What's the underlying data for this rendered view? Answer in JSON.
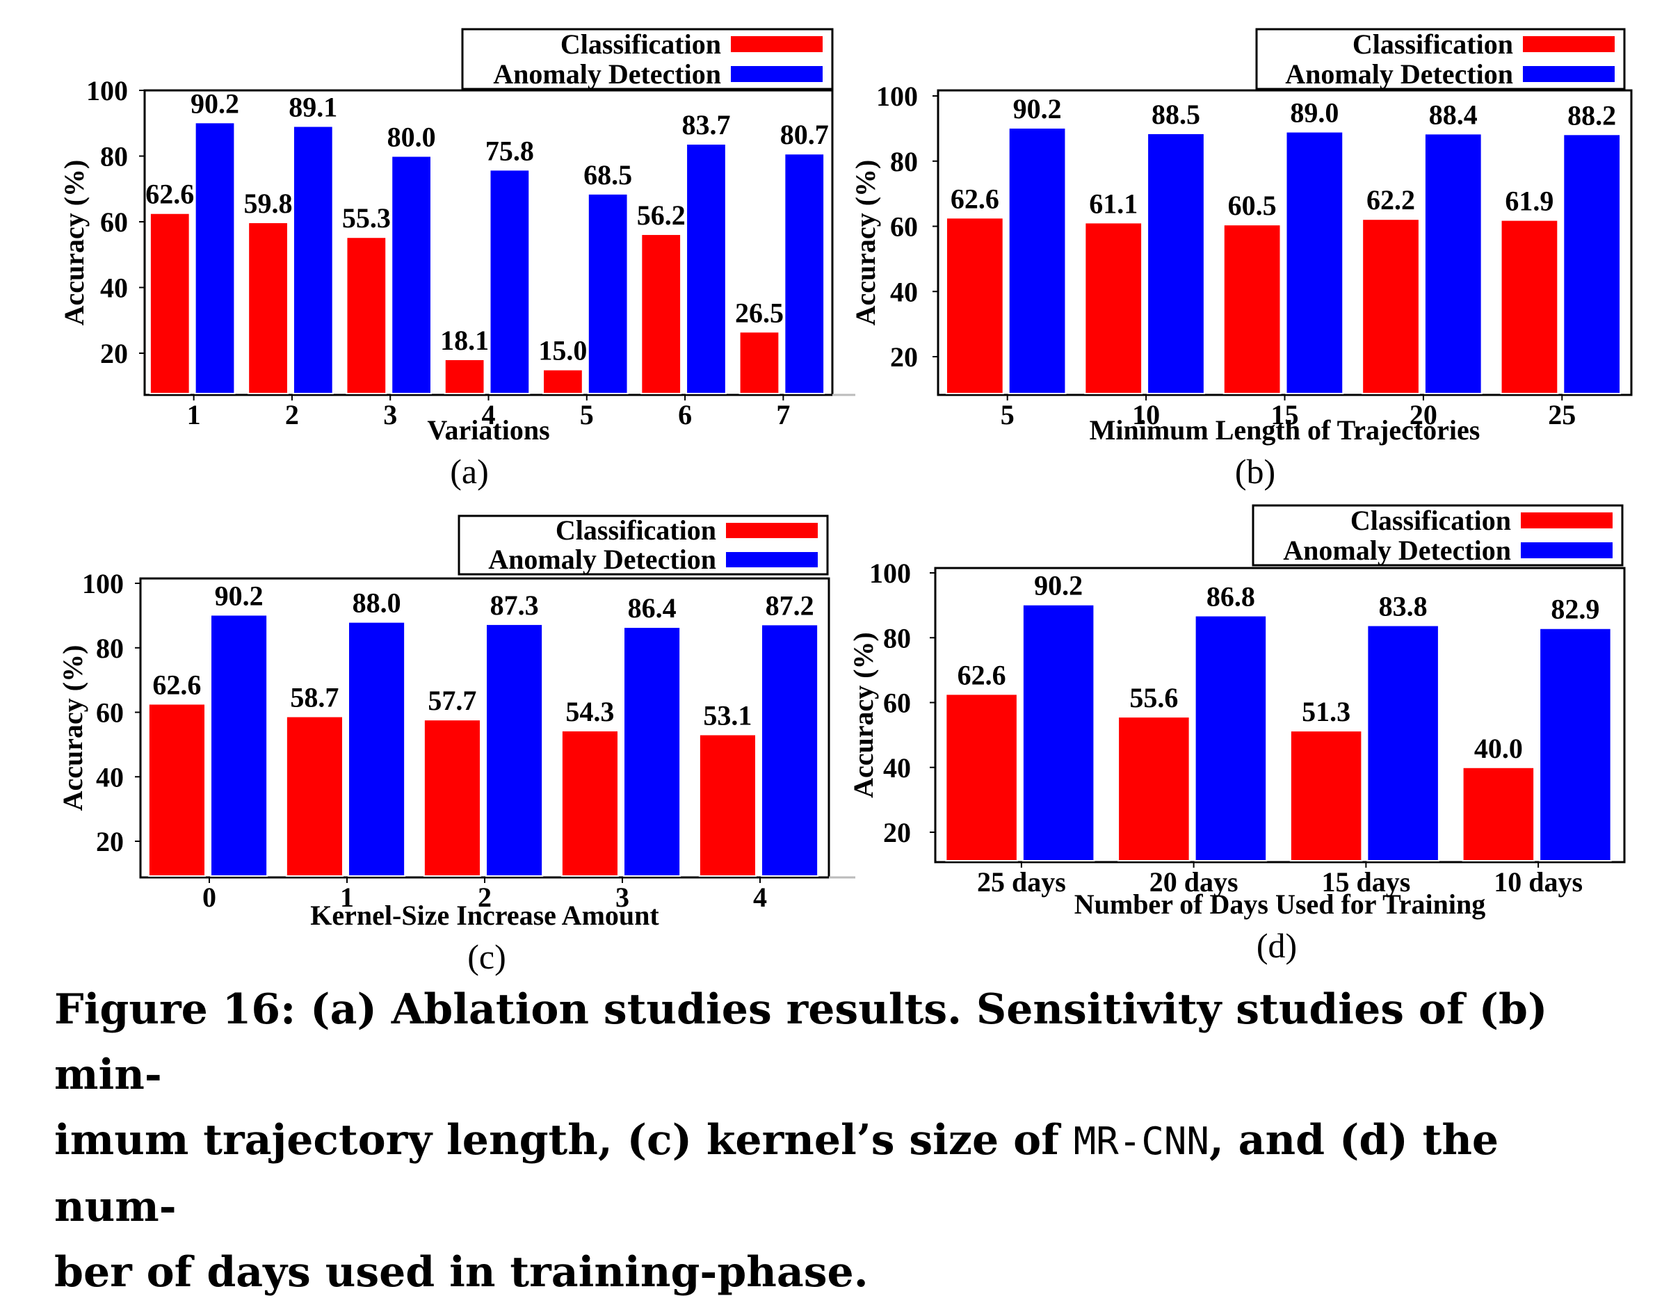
{
  "chart_data": [
    {
      "type": "bar",
      "panel_label": "(a)",
      "xlabel": "Variations",
      "ylabel": "Accuracy (%)",
      "ylim": [
        8,
        100
      ],
      "yticks": [
        "100",
        "80",
        "60",
        "40",
        "20"
      ],
      "categories": [
        "1",
        "2",
        "3",
        "4",
        "5",
        "6",
        "7"
      ],
      "series": [
        {
          "name": "Classification",
          "color": "#ff0000",
          "values": [
            62.6,
            59.8,
            55.3,
            18.1,
            15.0,
            56.2,
            26.5
          ],
          "labels": [
            "62.6",
            "59.8",
            "55.3",
            "18.1",
            "15.0",
            "56.2",
            "26.5"
          ]
        },
        {
          "name": "Anomaly Detection",
          "color": "#0000ff",
          "values": [
            90.2,
            89.1,
            80.0,
            75.8,
            68.5,
            83.7,
            80.7
          ],
          "labels": [
            "90.2",
            "89.1",
            "80.0",
            "75.8",
            "68.5",
            "83.7",
            "80.7"
          ]
        }
      ],
      "legend": "top-right"
    },
    {
      "type": "bar",
      "panel_label": "(b)",
      "xlabel": "Minimum Length of Trajectories",
      "ylabel": "Accuracy (%)",
      "ylim": [
        8,
        100
      ],
      "yticks": [
        "100",
        "80",
        "60",
        "40",
        "20"
      ],
      "categories": [
        "5",
        "10",
        "15",
        "20",
        "25"
      ],
      "series": [
        {
          "name": "Classification",
          "color": "#ff0000",
          "values": [
            62.6,
            61.1,
            60.5,
            62.2,
            61.9
          ],
          "labels": [
            "62.6",
            "61.1",
            "60.5",
            "62.2",
            "61.9"
          ]
        },
        {
          "name": "Anomaly Detection",
          "color": "#0000ff",
          "values": [
            90.2,
            88.5,
            89.0,
            88.4,
            88.2
          ],
          "labels": [
            "90.2",
            "88.5",
            "89.0",
            "88.4",
            "88.2"
          ]
        }
      ],
      "legend": "top-right"
    },
    {
      "type": "bar",
      "panel_label": "(c)",
      "xlabel": "Kernel-Size Increase Amount",
      "ylabel": "Accuracy (%)",
      "ylim": [
        10,
        100
      ],
      "yticks": [
        "100",
        "80",
        "60",
        "40",
        "20"
      ],
      "categories": [
        "0",
        "1",
        "2",
        "3",
        "4"
      ],
      "series": [
        {
          "name": "Classification",
          "color": "#ff0000",
          "values": [
            62.6,
            58.7,
            57.7,
            54.3,
            53.1
          ],
          "labels": [
            "62.6",
            "58.7",
            "57.7",
            "54.3",
            "53.1"
          ]
        },
        {
          "name": "Anomaly Detection",
          "color": "#0000ff",
          "values": [
            90.2,
            88.0,
            87.3,
            86.4,
            87.2
          ],
          "labels": [
            "90.2",
            "88.0",
            "87.3",
            "86.4",
            "87.2"
          ]
        }
      ],
      "legend": "top-right"
    },
    {
      "type": "bar",
      "panel_label": "(d)",
      "xlabel": "Number of Days Used for Training",
      "ylabel": "Accuracy (%)",
      "ylim": [
        10,
        100
      ],
      "yticks": [
        "100",
        "80",
        "60",
        "40",
        "20"
      ],
      "categories": [
        "25 days",
        "20 days",
        "15 days",
        "10 days"
      ],
      "series": [
        {
          "name": "Classification",
          "color": "#ff0000",
          "values": [
            62.6,
            55.6,
            51.3,
            40.0
          ],
          "labels": [
            "62.6",
            "55.6",
            "51.3",
            "40.0"
          ]
        },
        {
          "name": "Anomaly Detection",
          "color": "#0000ff",
          "values": [
            90.2,
            86.8,
            83.8,
            82.9
          ],
          "labels": [
            "90.2",
            "86.8",
            "83.8",
            "82.9"
          ]
        }
      ],
      "legend": "top-right"
    }
  ],
  "caption": {
    "part1": "Figure 16: (a) Ablation studies results. Sensitivity studies of (b) min-",
    "part2_before": "imum trajectory length, (c) kernel’s size of ",
    "part2_code": "MR-CNN",
    "part2_after": ", and (d) the num-",
    "part3": "ber of days used in training-phase."
  }
}
